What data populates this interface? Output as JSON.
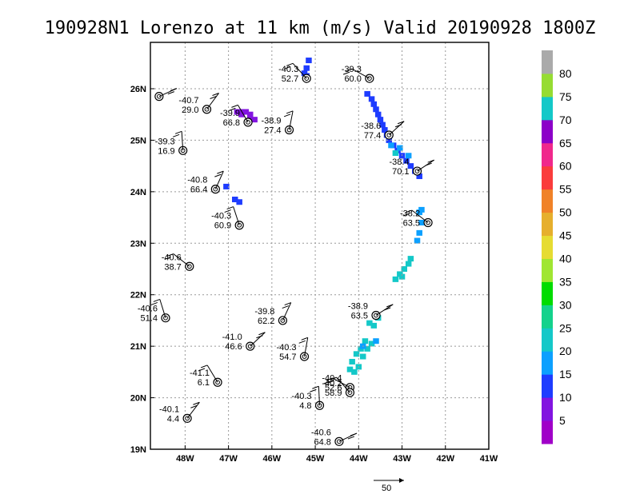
{
  "title": "190928N1 Lorenzo at 11 km (m/s) Valid 20190928 1800Z",
  "chart_data": {
    "type": "scatter",
    "xlim": [
      -48.8,
      -41.0
    ],
    "ylim": [
      19.0,
      26.9
    ],
    "x_ticks": [
      {
        "v": -48,
        "label": "48W"
      },
      {
        "v": -47,
        "label": "47W"
      },
      {
        "v": -46,
        "label": "46W"
      },
      {
        "v": -45,
        "label": "45W"
      },
      {
        "v": -44,
        "label": "44W"
      },
      {
        "v": -43,
        "label": "43W"
      },
      {
        "v": -42,
        "label": "42W"
      },
      {
        "v": -41,
        "label": "41W"
      }
    ],
    "y_ticks": [
      {
        "v": 19,
        "label": "19N"
      },
      {
        "v": 20,
        "label": "20N"
      },
      {
        "v": 21,
        "label": "21N"
      },
      {
        "v": 22,
        "label": "22N"
      },
      {
        "v": 23,
        "label": "23N"
      },
      {
        "v": 24,
        "label": "24N"
      },
      {
        "v": 25,
        "label": "25N"
      },
      {
        "v": 26,
        "label": "26N"
      }
    ],
    "grid": true,
    "vector_scale_label": "50",
    "colorbar": {
      "labels": [
        "5",
        "10",
        "15",
        "20",
        "25",
        "30",
        "35",
        "40",
        "45",
        "50",
        "55",
        "60",
        "65",
        "70",
        "75",
        "80"
      ],
      "colors": [
        "#a000c8",
        "#8214e0",
        "#1e3cff",
        "#0ca0ff",
        "#14c8c8",
        "#14d28c",
        "#00dc00",
        "#a0e632",
        "#e6dc32",
        "#e6af2d",
        "#f08228",
        "#fa3c3c",
        "#f0288c",
        "#8c00c8",
        "#14c8c8",
        "#96dc32",
        "#aaaaaa"
      ]
    },
    "stations": [
      {
        "lon": -48.6,
        "lat": 25.85,
        "t": "",
        "w": ""
      },
      {
        "lon": -47.5,
        "lat": 25.6,
        "t": "-40.7",
        "w": "29.0"
      },
      {
        "lon": -48.05,
        "lat": 24.8,
        "t": "-39.3",
        "w": "16.9"
      },
      {
        "lon": -45.2,
        "lat": 26.2,
        "t": "-40.3",
        "w": "52.7"
      },
      {
        "lon": -43.75,
        "lat": 26.2,
        "t": "-39.3",
        "w": "60.0"
      },
      {
        "lon": -46.55,
        "lat": 25.35,
        "t": "-39.9",
        "w": "66.8"
      },
      {
        "lon": -45.6,
        "lat": 25.2,
        "t": "-38.9",
        "w": "27.4"
      },
      {
        "lon": -43.3,
        "lat": 25.1,
        "t": "-38.6",
        "w": "77.4"
      },
      {
        "lon": -42.65,
        "lat": 24.4,
        "t": "-38.4",
        "w": "70.1"
      },
      {
        "lon": -47.3,
        "lat": 24.05,
        "t": "-40.8",
        "w": "66.4"
      },
      {
        "lon": -46.75,
        "lat": 23.35,
        "t": "-40.3",
        "w": "60.9"
      },
      {
        "lon": -42.4,
        "lat": 23.4,
        "t": "-38.2",
        "w": "63.5"
      },
      {
        "lon": -47.9,
        "lat": 22.55,
        "t": "-40.6",
        "w": "38.7"
      },
      {
        "lon": -48.45,
        "lat": 21.55,
        "t": "-40.6",
        "w": "51.4"
      },
      {
        "lon": -45.75,
        "lat": 21.5,
        "t": "-39.8",
        "w": "62.2"
      },
      {
        "lon": -43.6,
        "lat": 21.6,
        "t": "-38.9",
        "w": "63.5"
      },
      {
        "lon": -46.5,
        "lat": 21.0,
        "t": "-41.0",
        "w": "46.6"
      },
      {
        "lon": -45.25,
        "lat": 20.8,
        "t": "-40.3",
        "w": "54.7"
      },
      {
        "lon": -47.25,
        "lat": 20.3,
        "t": "-41.1",
        "w": "6.1"
      },
      {
        "lon": -44.2,
        "lat": 20.2,
        "t": "-40.4",
        "w": "52.6"
      },
      {
        "lon": -44.2,
        "lat": 20.1,
        "t": "-40.2",
        "w": "58.9"
      },
      {
        "lon": -44.9,
        "lat": 19.85,
        "t": "-40.3",
        "w": "4.8"
      },
      {
        "lon": -47.95,
        "lat": 19.6,
        "t": "-40.1",
        "w": "4.4"
      },
      {
        "lon": -44.45,
        "lat": 19.15,
        "t": "-40.6",
        "w": "64.8"
      }
    ]
  }
}
